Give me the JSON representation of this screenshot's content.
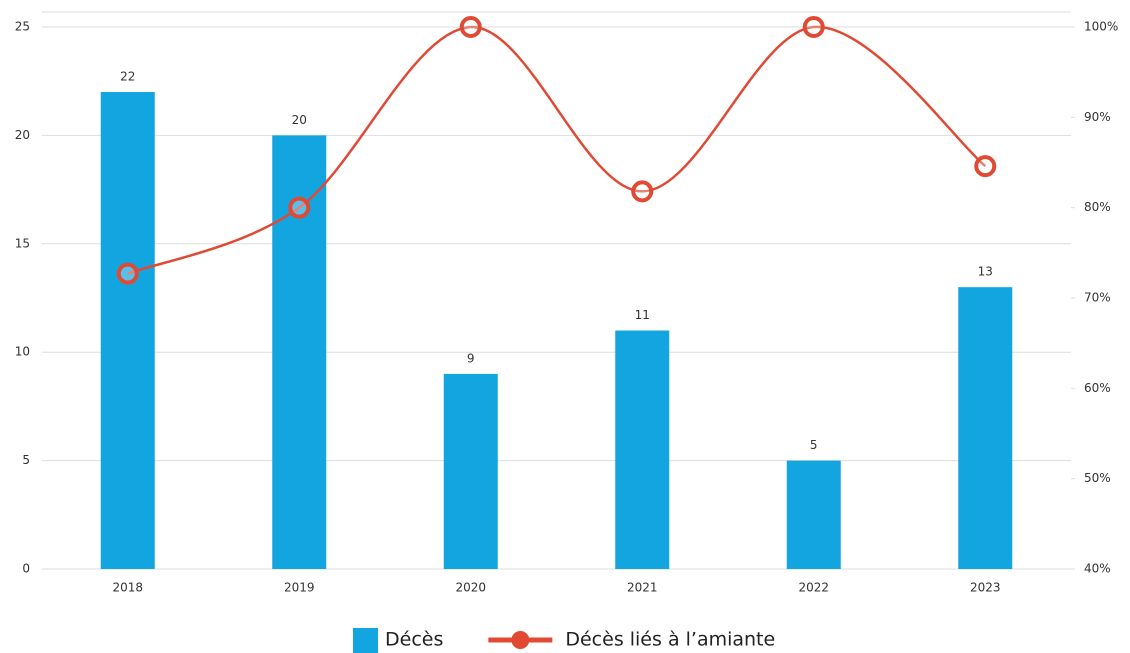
{
  "chart_data": {
    "type": "combo",
    "categories": [
      "2018",
      "2019",
      "2020",
      "2021",
      "2022",
      "2023"
    ],
    "series": [
      {
        "name": "Décès",
        "type": "bar",
        "color": "#12a5e0",
        "values": [
          22,
          20,
          9,
          11,
          5,
          13
        ]
      },
      {
        "name": "Décès liés à l’amiante",
        "type": "line",
        "axis": "y2",
        "color": "#e04a35",
        "values": [
          72.7,
          80,
          100,
          81.8,
          100,
          84.6
        ]
      }
    ],
    "ylim": [
      0,
      25
    ],
    "yticks": [
      0,
      5,
      10,
      15,
      20,
      25
    ],
    "y2lim": [
      40,
      100
    ],
    "y2ticks": [
      {
        "value": 40,
        "label": "40%"
      },
      {
        "value": 50,
        "label": "50%"
      },
      {
        "value": 60,
        "label": "60%"
      },
      {
        "value": 70,
        "label": "70%"
      },
      {
        "value": 80,
        "label": "80%"
      },
      {
        "value": 90,
        "label": "90%"
      },
      {
        "value": 100,
        "label": "100%"
      }
    ],
    "grid": true,
    "legend": "bottom"
  }
}
